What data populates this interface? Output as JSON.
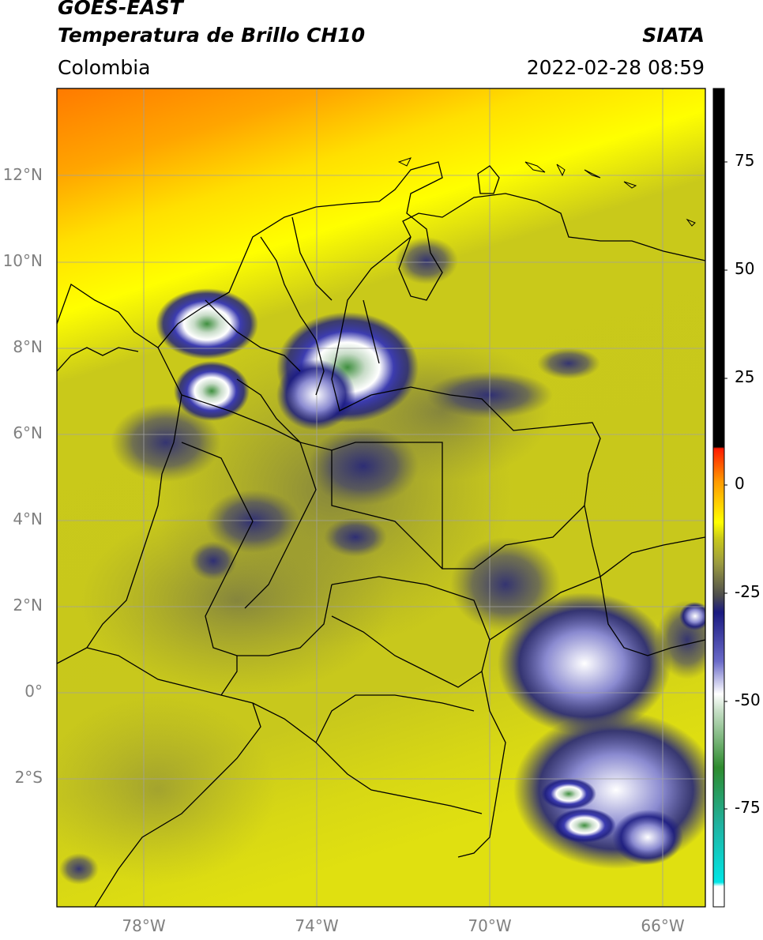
{
  "header": {
    "title_line1": "GOES-EAST",
    "title_line2": "Temperatura de Brillo CH10",
    "agency": "SIATA",
    "region": "Colombia",
    "timestamp": "2022-02-28 08:59"
  },
  "axes": {
    "lat_ticks": [
      "12°N",
      "10°N",
      "8°N",
      "6°N",
      "4°N",
      "2°N",
      "0°",
      "2°S"
    ],
    "lon_ticks": [
      "78°W",
      "74°W",
      "70°W",
      "66°W"
    ],
    "lat_range": [
      -4.6,
      14.2
    ],
    "lon_range": [
      -80,
      -65
    ]
  },
  "colorbar": {
    "ticks": [
      "75",
      "50",
      "25",
      "0",
      "-25",
      "-50",
      "-75"
    ],
    "range": [
      -95,
      90
    ],
    "colors": {
      "black": "#000000",
      "red": "#ff1a00",
      "orange": "#ff9900",
      "yellow": "#ffff00",
      "olive": "#c9c91a",
      "gray": "#4d4d4d",
      "navy": "#1a1a80",
      "blue": "#3333b3",
      "white": "#ffffff",
      "green": "#2e8b2e",
      "teal": "#20b2a0",
      "cyan": "#00e6e6"
    }
  }
}
